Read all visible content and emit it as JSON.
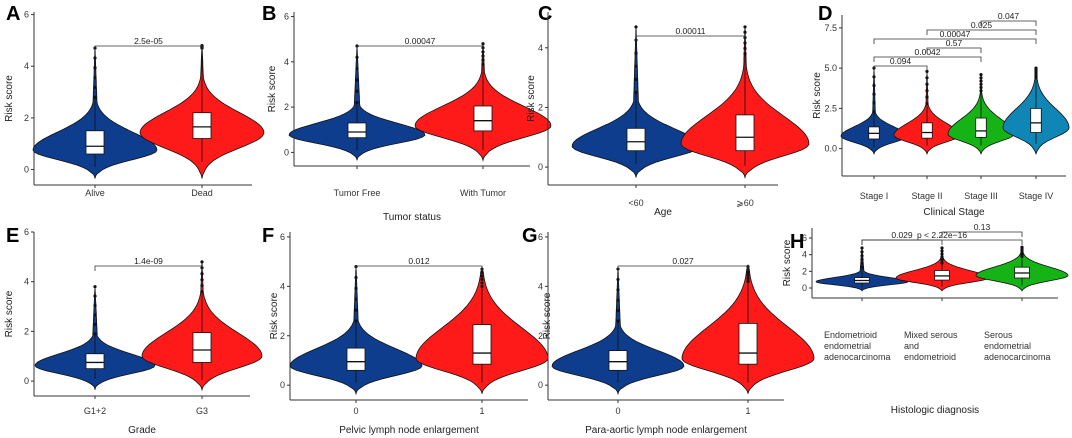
{
  "chart_data": [
    {
      "panel": "A",
      "type": "violin",
      "xlabel": "",
      "ylabel": "Risk score",
      "ylim": [
        -0.6,
        6.1
      ],
      "yticks": [
        0,
        2,
        4,
        6
      ],
      "categories": [
        "Alive",
        "Dead"
      ],
      "colors": [
        "#0d3d8c",
        "#ff1a1a"
      ],
      "medians": [
        0.9,
        1.65
      ],
      "q1": [
        0.6,
        1.2
      ],
      "q3": [
        1.5,
        2.2
      ],
      "whisker_low": [
        0.1,
        0.3
      ],
      "whisker_high": [
        2.8,
        4.7
      ],
      "outlier_max": [
        4.7,
        4.8
      ],
      "comparisons": [
        {
          "pair": [
            0,
            1
          ],
          "label": "2.5e-05"
        }
      ]
    },
    {
      "panel": "B",
      "type": "violin",
      "xlabel": "Tumor status",
      "ylabel": "Risk score",
      "ylim": [
        -0.6,
        6.2
      ],
      "yticks": [
        0,
        2,
        4,
        6
      ],
      "categories": [
        "Tumor Free",
        "With Tumor"
      ],
      "colors": [
        "#0d3d8c",
        "#ff1a1a"
      ],
      "medians": [
        0.9,
        1.4
      ],
      "q1": [
        0.65,
        0.95
      ],
      "q3": [
        1.3,
        2.05
      ],
      "whisker_low": [
        0.1,
        0.1
      ],
      "whisker_high": [
        2.2,
        3.9
      ],
      "outlier_max": [
        4.7,
        4.8
      ],
      "comparisons": [
        {
          "pair": [
            0,
            1
          ],
          "label": "0.00047"
        }
      ]
    },
    {
      "panel": "C",
      "type": "violin",
      "xlabel": "Age",
      "ylabel": "Risk score",
      "ylim": [
        -0.6,
        5.2
      ],
      "yticks": [
        0,
        2,
        4
      ],
      "categories": [
        "<60",
        "⩾60"
      ],
      "colors": [
        "#0d3d8c",
        "#ff1a1a"
      ],
      "medians": [
        0.85,
        1.0
      ],
      "q1": [
        0.55,
        0.55
      ],
      "q3": [
        1.3,
        1.75
      ],
      "whisker_low": [
        0.1,
        0.05
      ],
      "whisker_high": [
        2.5,
        3.8
      ],
      "outlier_max": [
        4.7,
        4.7
      ],
      "comparisons": [
        {
          "pair": [
            0,
            1
          ],
          "label": "0.00011"
        }
      ]
    },
    {
      "panel": "D",
      "type": "violin",
      "xlabel": "Clinical Stage",
      "ylabel": "Risk score",
      "ylim": [
        -1.7,
        8.3
      ],
      "yticks": [
        0.0,
        2.5,
        5.0,
        7.5
      ],
      "categories": [
        "Stage I",
        "Stage II",
        "Stage III",
        "Stage IV"
      ],
      "colors": [
        "#0d3d8c",
        "#ff1a1a",
        "#16b316",
        "#0f86b5"
      ],
      "medians": [
        0.95,
        1.0,
        1.1,
        1.6
      ],
      "q1": [
        0.6,
        0.65,
        0.7,
        1.0
      ],
      "q3": [
        1.35,
        1.6,
        1.9,
        2.5
      ],
      "whisker_low": [
        0.1,
        0.2,
        0.2,
        0.3
      ],
      "whisker_high": [
        2.3,
        2.8,
        3.6,
        4.4
      ],
      "outlier_max": [
        5.0,
        4.8,
        4.6,
        5.0
      ],
      "comparisons": [
        {
          "pair": [
            0,
            1
          ],
          "label": "0.094"
        },
        {
          "pair": [
            0,
            2
          ],
          "label": "0.0042"
        },
        {
          "pair": [
            0,
            3
          ],
          "label": "0.00047"
        },
        {
          "pair": [
            1,
            2
          ],
          "label": "0.57"
        },
        {
          "pair": [
            1,
            3
          ],
          "label": "0.025"
        },
        {
          "pair": [
            2,
            3
          ],
          "label": "0.047"
        }
      ]
    },
    {
      "panel": "E",
      "type": "violin",
      "xlabel": "Grade",
      "ylabel": "Risk score",
      "ylim": [
        -0.6,
        6.0
      ],
      "yticks": [
        0,
        2,
        4,
        6
      ],
      "categories": [
        "G1+2",
        "G3"
      ],
      "colors": [
        "#0d3d8c",
        "#ff1a1a"
      ],
      "medians": [
        0.75,
        1.25
      ],
      "q1": [
        0.5,
        0.75
      ],
      "q3": [
        1.1,
        1.95
      ],
      "whisker_low": [
        0.1,
        0.05
      ],
      "whisker_high": [
        1.9,
        3.6
      ],
      "outlier_max": [
        3.8,
        4.8
      ],
      "comparisons": [
        {
          "pair": [
            0,
            1
          ],
          "label": "1.4e-09"
        }
      ]
    },
    {
      "panel": "F",
      "type": "violin",
      "xlabel": "Pelvic lymph node enlargement",
      "ylabel": "Risk score",
      "ylim": [
        -0.6,
        6.2
      ],
      "yticks": [
        0,
        2,
        4,
        6
      ],
      "categories": [
        "0",
        "1"
      ],
      "colors": [
        "#0d3d8c",
        "#ff1a1a"
      ],
      "medians": [
        0.95,
        1.3
      ],
      "q1": [
        0.6,
        0.85
      ],
      "q3": [
        1.5,
        2.45
      ],
      "whisker_low": [
        0.1,
        0.1
      ],
      "whisker_high": [
        2.6,
        4.0
      ],
      "outlier_max": [
        4.8,
        4.7
      ],
      "comparisons": [
        {
          "pair": [
            0,
            1
          ],
          "label": "0.012"
        }
      ]
    },
    {
      "panel": "G",
      "type": "violin",
      "xlabel": "Para-aortic lymph node enlargement",
      "ylabel": "Risk score",
      "ylim": [
        -0.6,
        6.2
      ],
      "yticks": [
        0,
        2,
        4,
        6
      ],
      "categories": [
        "0",
        "1"
      ],
      "colors": [
        "#0d3d8c",
        "#ff1a1a"
      ],
      "medians": [
        0.95,
        1.3
      ],
      "q1": [
        0.6,
        0.85
      ],
      "q3": [
        1.4,
        2.5
      ],
      "whisker_low": [
        0.1,
        0.1
      ],
      "whisker_high": [
        2.6,
        4.2
      ],
      "outlier_max": [
        4.7,
        4.8
      ],
      "comparisons": [
        {
          "pair": [
            0,
            1
          ],
          "label": "0.027"
        }
      ]
    },
    {
      "panel": "H",
      "type": "violin",
      "xlabel": "Histologic diagnosis",
      "ylabel": "Risk score",
      "ylim": [
        -1.2,
        7.2
      ],
      "yticks": [
        0,
        2,
        4,
        6
      ],
      "categories": [
        [
          "Endometrioid",
          "endometrial",
          "adenocarcinoma"
        ],
        [
          "Mixed serous",
          "and",
          "endometrioid"
        ],
        [
          "Serous",
          "endometrial",
          "adenocarcinoma"
        ]
      ],
      "colors": [
        "#0d3d8c",
        "#ff1a1a",
        "#16b316"
      ],
      "medians": [
        0.9,
        1.45,
        1.8
      ],
      "q1": [
        0.6,
        0.95,
        1.2
      ],
      "q3": [
        1.25,
        2.1,
        2.5
      ],
      "whisker_low": [
        0.1,
        0.2,
        0.3
      ],
      "whisker_high": [
        2.5,
        3.0,
        3.8
      ],
      "outlier_max": [
        4.8,
        4.8,
        4.9
      ],
      "comparisons": [
        {
          "pair": [
            0,
            1
          ],
          "label": "0.029"
        },
        {
          "pair": [
            0,
            2
          ],
          "label": "p < 2.22e−16"
        },
        {
          "pair": [
            1,
            2
          ],
          "label": "0.13"
        }
      ]
    }
  ]
}
